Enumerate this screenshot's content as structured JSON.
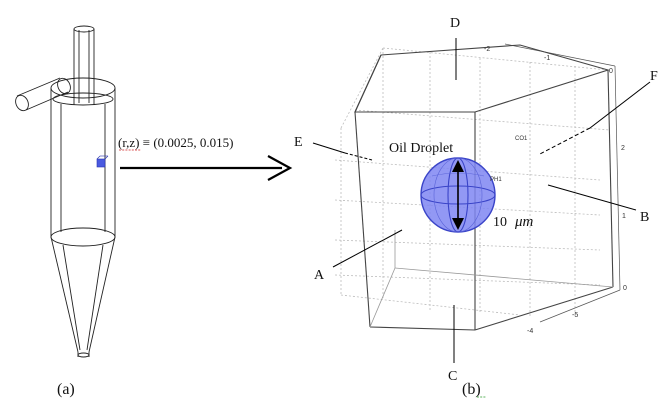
{
  "coordinate_label": "(r,z) ≡ (0.0025, 0.015)",
  "droplet_label": "Oil Droplet",
  "size_value": "10",
  "size_unit": "μm",
  "tag_co1": "CO1",
  "tag_ph1": "PH1",
  "face_labels": {
    "a": "A",
    "b": "B",
    "c": "C",
    "d": "D",
    "e": "E",
    "f": "F"
  },
  "panel_labels": {
    "left": "(a)",
    "right": "(b)"
  },
  "axis_ticks_top": [
    "-2",
    "-1",
    "0"
  ],
  "axis_ticks_right": [
    "2",
    "1",
    "0"
  ],
  "axis_ticks_bottom": [
    "-5",
    "-4"
  ],
  "colors": {
    "droplet": "#7f86f2",
    "droplet_edge": "#3a44c8",
    "cell_marker": "#4a5ae0"
  }
}
